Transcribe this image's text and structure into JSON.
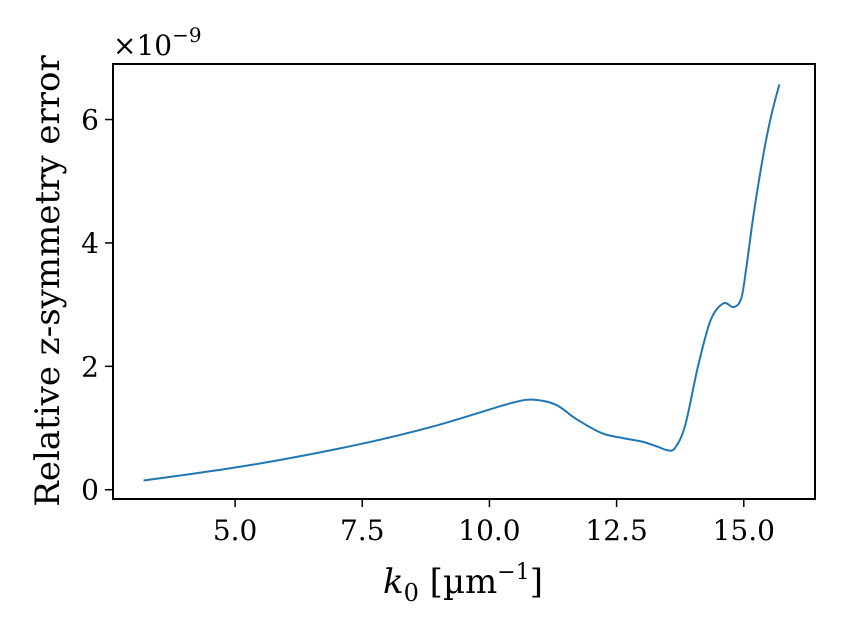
{
  "chart_data": {
    "type": "line",
    "title": "",
    "xlabel": {
      "base": "k",
      "sub": "0",
      "unit_open": " [µm",
      "unit_sup": "−1",
      "unit_close": "]"
    },
    "ylabel": "Relative z-symmetry error",
    "y_multiplier": {
      "base": "×10",
      "exp": "−9"
    },
    "xlim": [
      2.6,
      16.4
    ],
    "ylim": [
      -0.15,
      6.9
    ],
    "x_ticks": [
      5.0,
      7.5,
      10.0,
      12.5,
      15.0
    ],
    "x_tick_labels": [
      "5.0",
      "7.5",
      "10.0",
      "12.5",
      "15.0"
    ],
    "y_ticks": [
      0,
      2,
      4,
      6
    ],
    "y_tick_labels": [
      "0",
      "2",
      "4",
      "6"
    ],
    "grid": false,
    "line_color": "#1f77b4",
    "series": [
      {
        "x": [
          3.2,
          4.0,
          5.0,
          6.0,
          7.0,
          8.0,
          9.0,
          10.0,
          10.5,
          10.85,
          11.3,
          11.7,
          12.2,
          12.6,
          13.0,
          13.3,
          13.5,
          13.65,
          13.85,
          14.1,
          14.35,
          14.6,
          14.8,
          14.95,
          15.05,
          15.2,
          15.4,
          15.55,
          15.7
        ],
        "y": [
          0.15,
          0.24,
          0.36,
          0.5,
          0.66,
          0.84,
          1.05,
          1.3,
          1.42,
          1.46,
          1.38,
          1.15,
          0.92,
          0.84,
          0.78,
          0.7,
          0.64,
          0.68,
          1.05,
          2.0,
          2.75,
          3.02,
          2.96,
          3.1,
          3.6,
          4.5,
          5.5,
          6.1,
          6.57
        ]
      }
    ]
  }
}
